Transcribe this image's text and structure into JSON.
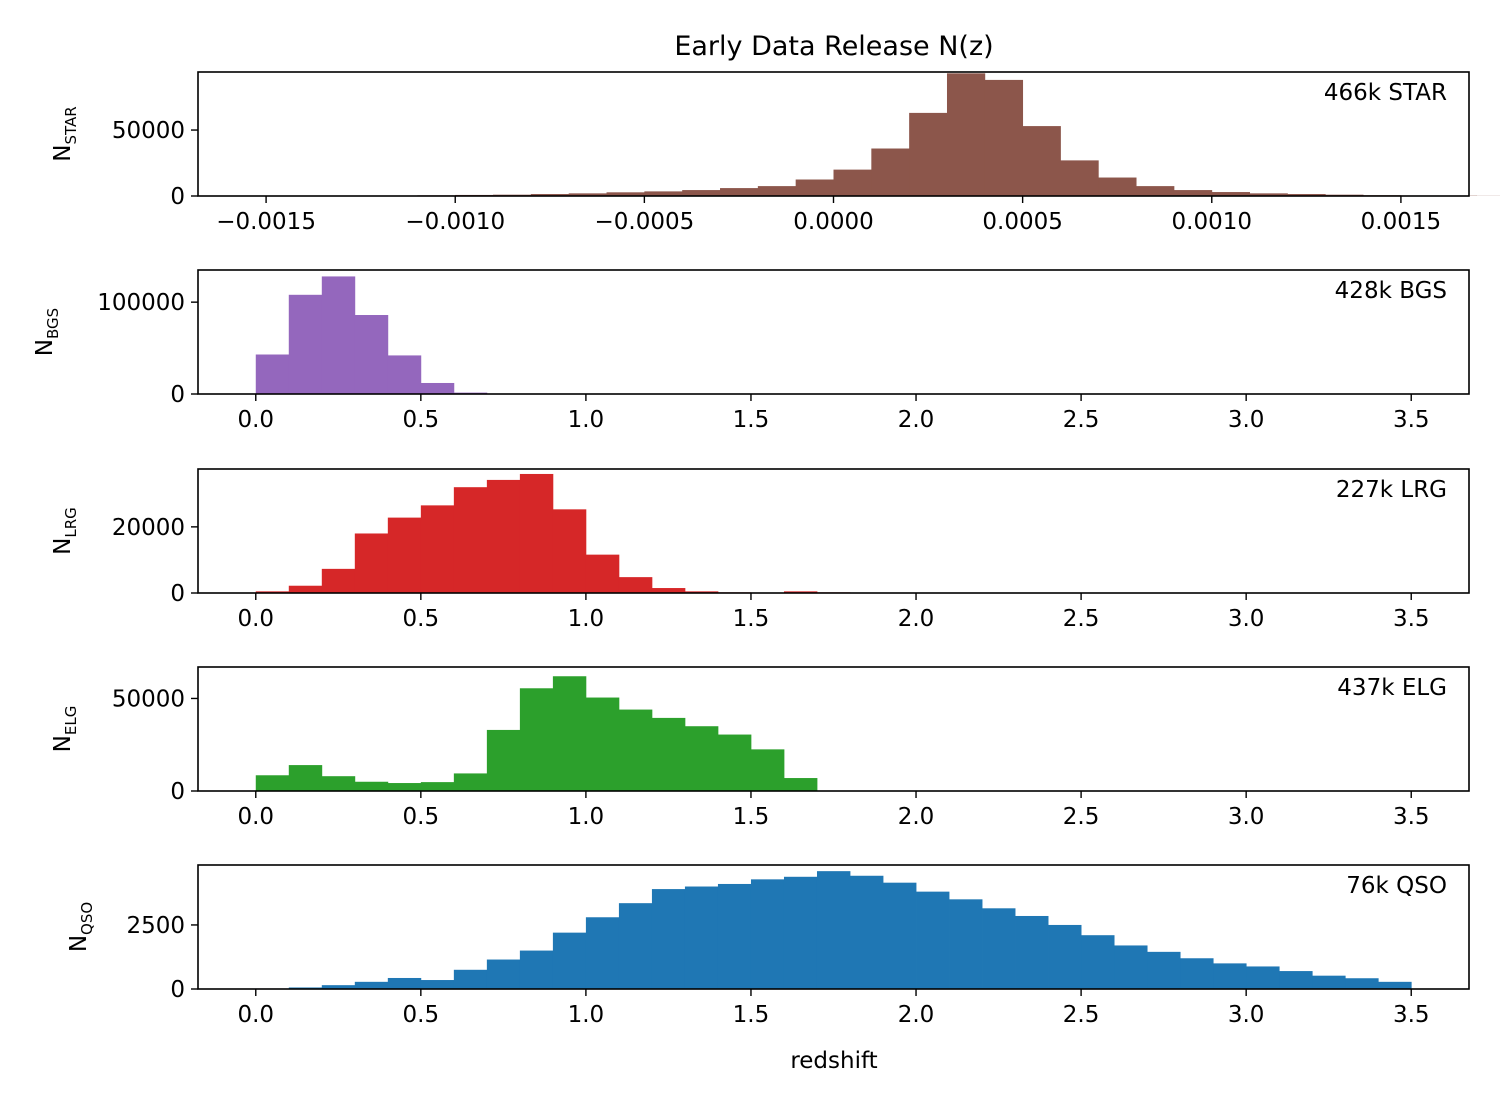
{
  "figure": {
    "title": "Early Data Release N(z)",
    "xlabel": "redshift"
  },
  "chart_data": [
    {
      "type": "bar",
      "color": "#8c564b",
      "ylabel_main": "N",
      "ylabel_sub": "STAR",
      "annotation": "466k STAR",
      "xlim": [
        -0.00168,
        0.00168
      ],
      "ylim": [
        0,
        94000
      ],
      "xticks": [
        -0.0015,
        -0.001,
        -0.0005,
        0.0,
        0.0005,
        0.001,
        0.0015
      ],
      "xtick_labels": [
        "−0.0015",
        "−0.0010",
        "−0.0005",
        "0.0000",
        "0.0005",
        "0.0010",
        "0.0015"
      ],
      "yticks": [
        0,
        50000
      ],
      "ytick_labels": [
        "0",
        "50000"
      ],
      "bin_start": -0.0015,
      "bin_width": 0.0001,
      "values": [
        0,
        0,
        0,
        0,
        500,
        800,
        1000,
        1500,
        2000,
        2800,
        3500,
        4500,
        6000,
        7500,
        12500,
        20000,
        36000,
        63000,
        93000,
        88000,
        53000,
        27000,
        14000,
        7500,
        4500,
        3000,
        2000,
        1500,
        1000,
        600,
        400,
        200,
        100,
        0,
        0,
        0,
        0,
        0,
        0,
        0
      ]
    },
    {
      "type": "bar",
      "color": "#9467bd",
      "ylabel_main": "N",
      "ylabel_sub": "BGS",
      "annotation": "428k BGS",
      "xlim": [
        -0.175,
        3.675
      ],
      "ylim": [
        0,
        135000
      ],
      "xticks": [
        0.0,
        0.5,
        1.0,
        1.5,
        2.0,
        2.5,
        3.0,
        3.5
      ],
      "xtick_labels": [
        "0.0",
        "0.5",
        "1.0",
        "1.5",
        "2.0",
        "2.5",
        "3.0",
        "3.5"
      ],
      "yticks": [
        0,
        100000
      ],
      "ytick_labels": [
        "0",
        "100000"
      ],
      "bin_start": 0.0,
      "bin_width": 0.1,
      "values": [
        43000,
        108000,
        128000,
        86000,
        42000,
        12000,
        1500,
        200
      ]
    },
    {
      "type": "bar",
      "color": "#d62728",
      "ylabel_main": "N",
      "ylabel_sub": "LRG",
      "annotation": "227k LRG",
      "xlim": [
        -0.175,
        3.675
      ],
      "ylim": [
        0,
        37500
      ],
      "xticks": [
        0.0,
        0.5,
        1.0,
        1.5,
        2.0,
        2.5,
        3.0,
        3.5
      ],
      "xtick_labels": [
        "0.0",
        "0.5",
        "1.0",
        "1.5",
        "2.0",
        "2.5",
        "3.0",
        "3.5"
      ],
      "yticks": [
        0,
        20000
      ],
      "ytick_labels": [
        "0",
        "20000"
      ],
      "bin_start": 0.0,
      "bin_width": 0.1,
      "values": [
        500,
        2200,
        7300,
        18000,
        22800,
        26500,
        32000,
        34200,
        36000,
        25300,
        11600,
        4800,
        1500,
        500,
        200,
        100,
        500,
        200
      ]
    },
    {
      "type": "bar",
      "color": "#2ca02c",
      "ylabel_main": "N",
      "ylabel_sub": "ELG",
      "annotation": "437k ELG",
      "xlim": [
        -0.175,
        3.675
      ],
      "ylim": [
        0,
        67000
      ],
      "xticks": [
        0.0,
        0.5,
        1.0,
        1.5,
        2.0,
        2.5,
        3.0,
        3.5
      ],
      "xtick_labels": [
        "0.0",
        "0.5",
        "1.0",
        "1.5",
        "2.0",
        "2.5",
        "3.0",
        "3.5"
      ],
      "yticks": [
        0,
        50000
      ],
      "ytick_labels": [
        "0",
        "50000"
      ],
      "bin_start": 0.0,
      "bin_width": 0.1,
      "values": [
        8500,
        14000,
        8000,
        5000,
        4300,
        4800,
        9500,
        33000,
        55500,
        62000,
        50500,
        44000,
        39500,
        35000,
        30500,
        22500,
        7000
      ]
    },
    {
      "type": "bar",
      "color": "#1f77b4",
      "ylabel_main": "N",
      "ylabel_sub": "QSO",
      "annotation": "76k QSO",
      "xlim": [
        -0.175,
        3.675
      ],
      "ylim": [
        0,
        4840
      ],
      "xticks": [
        0.0,
        0.5,
        1.0,
        1.5,
        2.0,
        2.5,
        3.0,
        3.5
      ],
      "xtick_labels": [
        "0.0",
        "0.5",
        "1.0",
        "1.5",
        "2.0",
        "2.5",
        "3.0",
        "3.5"
      ],
      "yticks": [
        0,
        2500
      ],
      "ytick_labels": [
        "0",
        "2500"
      ],
      "bin_start": 0.0,
      "bin_width": 0.1,
      "values": [
        20,
        60,
        150,
        280,
        430,
        350,
        750,
        1150,
        1500,
        2200,
        2800,
        3350,
        3900,
        4000,
        4100,
        4280,
        4380,
        4600,
        4420,
        4150,
        3800,
        3500,
        3150,
        2850,
        2500,
        2100,
        1700,
        1450,
        1200,
        1000,
        880,
        700,
        520,
        420,
        280
      ]
    }
  ]
}
